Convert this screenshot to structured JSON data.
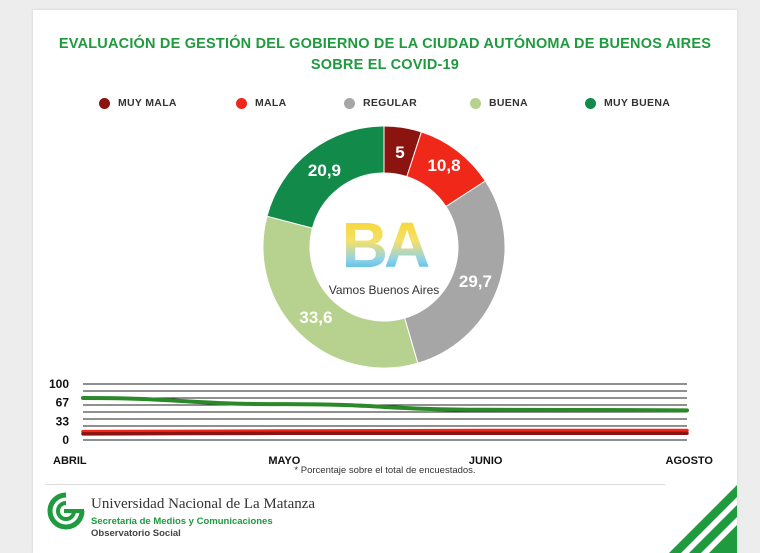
{
  "title_line1": "EVALUACIÓN DE GESTIÓN DEL GOBIERNO DE LA CIUDAD AUTÓNOMA DE BUENOS AIRES",
  "title_line2": "SOBRE EL COVID-19",
  "logo": {
    "letters": "BA",
    "caption": "Vamos Buenos Aires"
  },
  "colors": {
    "muy_mala": "#8b1410",
    "mala": "#f0281a",
    "regular": "#a6a6a6",
    "buena": "#b7d28e",
    "muy_buena": "#128a4a",
    "title": "#1f9a3f"
  },
  "chart_data": [
    {
      "type": "pie",
      "variant": "donut",
      "legend_position": "top",
      "categories": [
        "MUY MALA",
        "MALA",
        "REGULAR",
        "BUENA",
        "MUY BUENA"
      ],
      "values": [
        5,
        10.8,
        29.7,
        33.6,
        20.9
      ],
      "value_labels": [
        "5",
        "10,8",
        "29,7",
        "33,6",
        "20,9"
      ],
      "colors": [
        "#8b1410",
        "#f0281a",
        "#a6a6a6",
        "#b7d28e",
        "#128a4a"
      ]
    },
    {
      "type": "line",
      "x": [
        "ABRIL",
        "MAYO",
        "JUNIO",
        "AGOSTO"
      ],
      "ylim": [
        0,
        100
      ],
      "yticks": [
        "100",
        "67",
        "33",
        "0"
      ],
      "grid": true,
      "series": [
        {
          "color": "#2a8a2a",
          "values": [
            75,
            64,
            54,
            53
          ]
        },
        {
          "color": "#f0281a",
          "values": [
            15,
            16,
            17,
            17
          ]
        },
        {
          "color": "#8b1410",
          "values": [
            11,
            12,
            12,
            12
          ]
        }
      ],
      "note": "* Porcentaje sobre el total de encuestados."
    }
  ],
  "footer": {
    "university": "Universidad Nacional de La Matanza",
    "secretaria": "Secretaría de Medios y Comunicaciones",
    "observatorio": "Observatorio Social"
  }
}
